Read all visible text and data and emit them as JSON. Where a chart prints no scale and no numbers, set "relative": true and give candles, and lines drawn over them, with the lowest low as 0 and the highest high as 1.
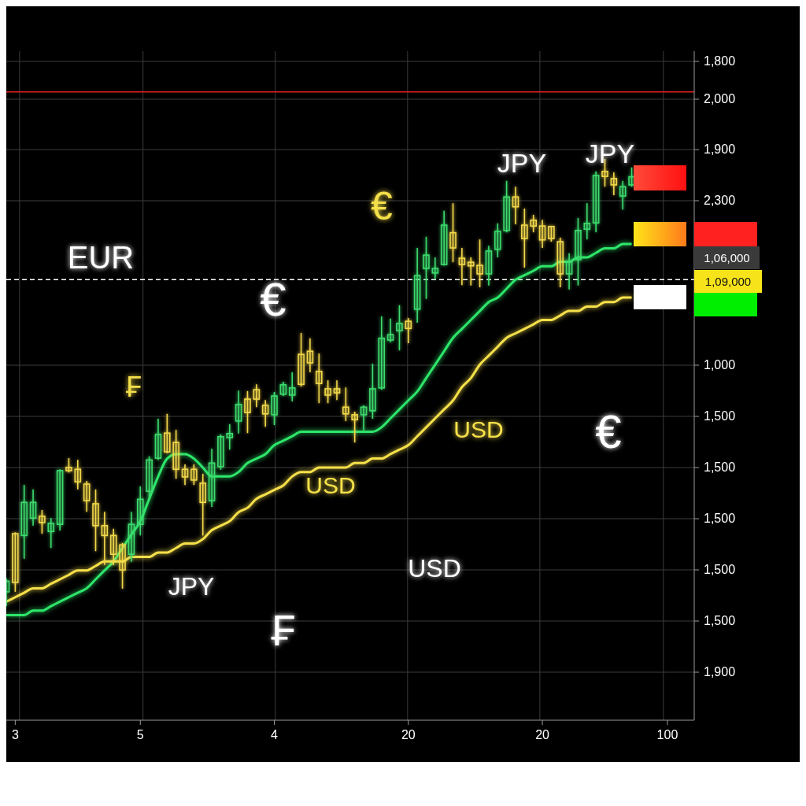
{
  "chart_data": {
    "type": "candlestick",
    "relative": true,
    "categories": [
      null,
      "3",
      null,
      null,
      null,
      null,
      null,
      null,
      null,
      null,
      null,
      null,
      null,
      null,
      null,
      "5",
      null,
      null,
      null,
      null,
      null,
      null,
      null,
      null,
      null,
      null,
      null,
      null,
      null,
      null,
      "4",
      null,
      null,
      null,
      null,
      null,
      null,
      null,
      null,
      null,
      null,
      null,
      null,
      null,
      null,
      "20",
      null,
      null,
      null,
      null,
      null,
      null,
      null,
      null,
      null,
      null,
      null,
      null,
      null,
      null,
      "20",
      null,
      null,
      null,
      null,
      null,
      null,
      null,
      null,
      null,
      null,
      null,
      null,
      null,
      "100",
      null,
      null,
      null
    ],
    "ohlc": [
      [
        0.032,
        0.062,
        0,
        0.056
      ],
      [
        0.162,
        0.165,
        0.032,
        0.053
      ],
      [
        0.158,
        0.271,
        0.106,
        0.232
      ],
      [
        0.197,
        0.261,
        0.18,
        0.232
      ],
      [
        0.201,
        0.215,
        0.162,
        0.187
      ],
      [
        0.167,
        0.197,
        0.13,
        0.185
      ],
      [
        0.183,
        0.306,
        0.169,
        0.303
      ],
      [
        0.31,
        0.331,
        0.299,
        0.303
      ],
      [
        0.306,
        0.327,
        0.261,
        0.278
      ],
      [
        0.273,
        0.28,
        0.211,
        0.236
      ],
      [
        0.229,
        0.261,
        0.123,
        0.18
      ],
      [
        0.18,
        0.211,
        0.092,
        0.158
      ],
      [
        0.158,
        0.173,
        0.092,
        0.116
      ],
      [
        0.137,
        0.141,
        0.039,
        0.081
      ],
      [
        0.116,
        0.211,
        0.099,
        0.183
      ],
      [
        0.183,
        0.268,
        0.158,
        0.239
      ],
      [
        0.257,
        0.335,
        0.239,
        0.327
      ],
      [
        0.331,
        0.419,
        0.327,
        0.384
      ],
      [
        0.387,
        0.43,
        0.342,
        0.345
      ],
      [
        0.366,
        0.394,
        0.285,
        0.306
      ],
      [
        0.306,
        0.317,
        0.271,
        0.289
      ],
      [
        0.306,
        0.317,
        0.271,
        0.282
      ],
      [
        0.275,
        0.296,
        0.158,
        0.232
      ],
      [
        0.236,
        0.352,
        0.222,
        0.32
      ],
      [
        0.312,
        0.384,
        0.305,
        0.379
      ],
      [
        0.377,
        0.407,
        0.35,
        0.386
      ],
      [
        0.414,
        0.482,
        0.386,
        0.451
      ],
      [
        0.463,
        0.481,
        0.387,
        0.433
      ],
      [
        0.484,
        0.496,
        0.445,
        0.463
      ],
      [
        0.449,
        0.461,
        0.401,
        0.43
      ],
      [
        0.428,
        0.479,
        0.405,
        0.47
      ],
      [
        0.474,
        0.502,
        0.47,
        0.495
      ],
      [
        0.472,
        0.523,
        0.458,
        0.488
      ],
      [
        0.563,
        0.611,
        0.491,
        0.496
      ],
      [
        0.57,
        0.599,
        0.523,
        0.544
      ],
      [
        0.525,
        0.565,
        0.454,
        0.498
      ],
      [
        0.486,
        0.505,
        0.454,
        0.472
      ],
      [
        0.486,
        0.505,
        0.461,
        0.477
      ],
      [
        0.445,
        0.489,
        0.414,
        0.43
      ],
      [
        0.428,
        0.435,
        0.366,
        0.417
      ],
      [
        0.428,
        0.449,
        0.393,
        0.445
      ],
      [
        0.437,
        0.542,
        0.419,
        0.486
      ],
      [
        0.488,
        0.648,
        0.484,
        0.599
      ],
      [
        0.595,
        0.643,
        0.59,
        0.607
      ],
      [
        0.616,
        0.673,
        0.572,
        0.632
      ],
      [
        0.637,
        0.644,
        0.588,
        0.621
      ],
      [
        0.664,
        0.801,
        0.634,
        0.739
      ],
      [
        0.755,
        0.826,
        0.687,
        0.785
      ],
      [
        0.745,
        0.78,
        0.731,
        0.755
      ],
      [
        0.764,
        0.884,
        0.762,
        0.852
      ],
      [
        0.835,
        0.901,
        0.769,
        0.801
      ],
      [
        0.778,
        0.801,
        0.718,
        0.764
      ],
      [
        0.769,
        0.78,
        0.717,
        0.761
      ],
      [
        0.762,
        0.82,
        0.713,
        0.743
      ],
      [
        0.743,
        0.806,
        0.717,
        0.794
      ],
      [
        0.798,
        0.856,
        0.78,
        0.838
      ],
      [
        0.84,
        0.951,
        0.836,
        0.915
      ],
      [
        0.915,
        0.938,
        0.854,
        0.893
      ],
      [
        0.852,
        0.889,
        0.757,
        0.822
      ],
      [
        0.863,
        0.875,
        0.836,
        0.85
      ],
      [
        0.85,
        0.864,
        0.801,
        0.819
      ],
      [
        0.849,
        0.85,
        0.815,
        0.822
      ],
      [
        0.815,
        0.824,
        0.713,
        0.743
      ],
      [
        0.743,
        0.789,
        0.708,
        0.771
      ],
      [
        0.775,
        0.868,
        0.717,
        0.84
      ],
      [
        0.843,
        0.901,
        0.82,
        0.856
      ],
      [
        0.857,
        0.972,
        0.836,
        0.963
      ],
      [
        0.972,
        1,
        0.938,
        0.961
      ],
      [
        0.956,
        0.97,
        0.919,
        0.942
      ],
      [
        0.917,
        0.951,
        0.887,
        0.938
      ],
      [
        0.942,
        0.981,
        0.938,
        0.96
      ],
      null,
      null,
      null,
      null,
      null,
      null,
      null
    ],
    "colors": [
      "#3ddc6e",
      "#f2d84a",
      "#3ddc6e",
      "#3ddc6e",
      "#f2d84a",
      "#3ddc6e",
      "#3ddc6e",
      "#f2d84a",
      "#f2d84a",
      "#f2d84a",
      "#f2d84a",
      "#f2d84a",
      "#f2d84a",
      "#f2d84a",
      "#3ddc6e",
      "#3ddc6e",
      "#3ddc6e",
      "#3ddc6e",
      "#f2d84a",
      "#f2d84a",
      "#f2d84a",
      "#f2d84a",
      "#f2d84a",
      "#3ddc6e",
      "#3ddc6e",
      "#3ddc6e",
      "#3ddc6e",
      "#f2d84a",
      "#f2d84a",
      "#f2d84a",
      "#3ddc6e",
      "#3ddc6e",
      "#3ddc6e",
      "#f2d84a",
      "#f2d84a",
      "#f2d84a",
      "#f2d84a",
      "#f2d84a",
      "#f2d84a",
      "#f2d84a",
      "#3ddc6e",
      "#3ddc6e",
      "#3ddc6e",
      "#3ddc6e",
      "#3ddc6e",
      "#f2d84a",
      "#3ddc6e",
      "#3ddc6e",
      "#3ddc6e",
      "#3ddc6e",
      "#f2d84a",
      "#f2d84a",
      "#f2d84a",
      "#f2d84a",
      "#3ddc6e",
      "#3ddc6e",
      "#3ddc6e",
      "#f2d84a",
      "#f2d84a",
      "#f2d84a",
      "#f2d84a",
      "#f2d84a",
      "#f2d84a",
      "#3ddc6e",
      "#3ddc6e",
      "#3ddc6e",
      "#3ddc6e",
      "#f2d84a",
      "#f2d84a",
      "#3ddc6e",
      "#3ddc6e",
      null,
      null,
      null,
      null,
      null,
      null,
      null
    ],
    "series": [
      {
        "type": "line",
        "color": "#2ee66a",
        "values": [
          -0.02,
          -0.02,
          -0.02,
          -0.01,
          -0.01,
          0,
          0.01,
          0.02,
          0.03,
          0.04,
          0.06,
          0.08,
          0.1,
          0.13,
          0.16,
          0.19,
          0.24,
          0.29,
          0.33,
          0.34,
          0.34,
          0.33,
          0.31,
          0.29,
          0.29,
          0.29,
          0.3,
          0.32,
          0.33,
          0.34,
          0.36,
          0.37,
          0.38,
          0.39,
          0.39,
          0.39,
          0.39,
          0.39,
          0.39,
          0.39,
          0.39,
          0.39,
          0.4,
          0.42,
          0.44,
          0.46,
          0.48,
          0.51,
          0.54,
          0.57,
          0.6,
          0.62,
          0.64,
          0.66,
          0.68,
          0.69,
          0.71,
          0.73,
          0.74,
          0.75,
          0.76,
          0.76,
          0.77,
          0.77,
          0.78,
          0.78,
          0.79,
          0.8,
          0.8,
          0.81,
          0.81,
          null,
          null,
          null,
          null,
          null,
          null,
          null
        ]
      },
      {
        "type": "line",
        "color": "#f5e04a",
        "values": [
          0.01,
          0.02,
          0.03,
          0.04,
          0.04,
          0.05,
          0.06,
          0.07,
          0.08,
          0.08,
          0.09,
          0.1,
          0.1,
          0.1,
          0.11,
          0.11,
          0.11,
          0.12,
          0.12,
          0.13,
          0.14,
          0.14,
          0.15,
          0.17,
          0.18,
          0.19,
          0.21,
          0.22,
          0.24,
          0.25,
          0.26,
          0.27,
          0.29,
          0.3,
          0.3,
          0.31,
          0.31,
          0.31,
          0.31,
          0.32,
          0.32,
          0.33,
          0.33,
          0.34,
          0.35,
          0.36,
          0.38,
          0.4,
          0.42,
          0.44,
          0.46,
          0.49,
          0.51,
          0.54,
          0.56,
          0.58,
          0.6,
          0.61,
          0.62,
          0.63,
          0.64,
          0.64,
          0.65,
          0.66,
          0.66,
          0.67,
          0.67,
          0.68,
          0.68,
          0.69,
          0.69,
          null,
          null,
          null,
          null,
          null,
          null,
          null
        ]
      }
    ],
    "grid": true,
    "ref_lines": [
      {
        "axis": "y",
        "value": 1.15,
        "color": "#e0201e",
        "line_style": "solid"
      },
      {
        "axis": "y",
        "value": 0.73,
        "color": "#ffffff",
        "line_style": "dashed"
      }
    ],
    "annotations": [
      "EUR",
      "JPY",
      "JPY",
      "USD",
      "USD",
      "USD",
      "JPY",
      "€",
      "€",
      "€",
      "₣",
      "₣",
      "1,06,000",
      "1,09,000",
      "1,800",
      "2,000",
      "1,900",
      "2,300",
      "1,000",
      "1,500",
      "1,500",
      "1,500",
      "1,500",
      "1,500",
      "1,900"
    ]
  }
}
